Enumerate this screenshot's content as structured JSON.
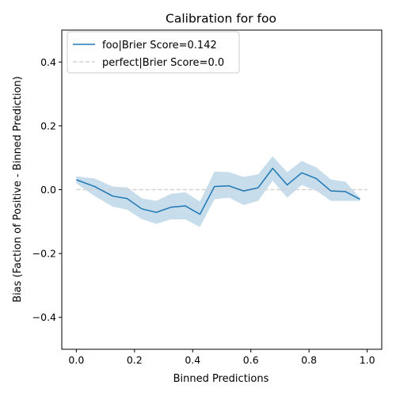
{
  "chart_data": {
    "type": "line",
    "title": "Calibration for foo",
    "xlabel": "Binned Predictions",
    "ylabel": "Bias (Faction of Positive - Binned Prediction)",
    "xlim": [
      -0.05,
      1.05
    ],
    "ylim": [
      -0.5,
      0.5
    ],
    "x_ticks": [
      0.0,
      0.2,
      0.4,
      0.6,
      0.8,
      1.0
    ],
    "x_tick_labels": [
      "0.0",
      "0.2",
      "0.4",
      "0.6",
      "0.8",
      "1.0"
    ],
    "y_ticks": [
      -0.4,
      -0.2,
      0.0,
      0.2,
      0.4
    ],
    "y_tick_labels": [
      "−0.4",
      "−0.2",
      "0.0",
      "0.2",
      "0.4"
    ],
    "grid": false,
    "legend_position": "top-left",
    "series": [
      {
        "name": "foo|Brier Score=0.142",
        "color": "#1f77b4",
        "style": "solid",
        "x": [
          0.0,
          0.0625,
          0.125,
          0.175,
          0.225,
          0.275,
          0.325,
          0.375,
          0.425,
          0.475,
          0.525,
          0.575,
          0.625,
          0.675,
          0.725,
          0.775,
          0.825,
          0.875,
          0.925,
          0.975
        ],
        "y": [
          0.031,
          0.01,
          -0.02,
          -0.028,
          -0.06,
          -0.071,
          -0.055,
          -0.051,
          -0.077,
          0.01,
          0.012,
          -0.004,
          0.006,
          0.067,
          0.015,
          0.053,
          0.035,
          -0.004,
          -0.006,
          -0.03
        ],
        "ci_lower": [
          0.02,
          -0.02,
          -0.053,
          -0.063,
          -0.092,
          -0.107,
          -0.093,
          -0.093,
          -0.117,
          -0.03,
          -0.025,
          -0.048,
          -0.035,
          0.028,
          -0.025,
          0.015,
          -0.003,
          -0.035,
          -0.035,
          -0.035
        ],
        "ci_upper": [
          0.042,
          0.035,
          0.01,
          0.007,
          -0.027,
          -0.035,
          -0.013,
          -0.008,
          -0.037,
          0.057,
          0.055,
          0.04,
          0.048,
          0.105,
          0.055,
          0.09,
          0.07,
          0.032,
          0.025,
          -0.025
        ]
      },
      {
        "name": "perfect|Brier Score=0.0",
        "color": "#d3d3d3",
        "style": "dashed",
        "x": [
          0.0,
          1.0
        ],
        "y": [
          0.0,
          0.0
        ]
      }
    ]
  }
}
